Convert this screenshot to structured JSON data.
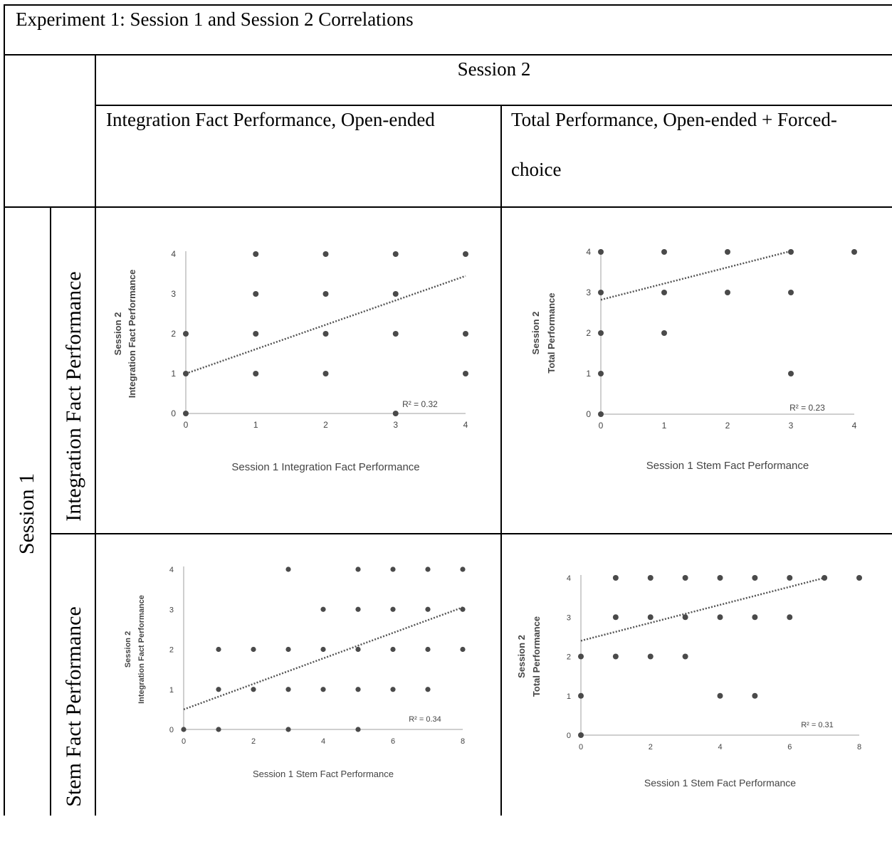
{
  "table": {
    "title": "Experiment 1: Session 1 and Session 2 Correlations",
    "col_group_header": "Session 2",
    "col_headers": [
      "Integration Fact Performance, Open-ended",
      "Total Performance, Open-ended + Forced-",
      "choice"
    ],
    "row_group_header": "Session 1",
    "row_headers": [
      "Integration Fact Performance",
      "Stem Fact Performance"
    ]
  },
  "colors": {
    "marker": "#4a4a4a",
    "trendline": "#555555",
    "axis": "#bfbfbf"
  },
  "chart_data": [
    {
      "type": "scatter",
      "xlabel": "Session 1 Integration Fact Performance",
      "ylabel": [
        "Session 2",
        "Integration Fact Performance"
      ],
      "xlim": [
        0,
        4
      ],
      "ylim": [
        0,
        4
      ],
      "xticks": [
        0,
        1,
        2,
        3,
        4
      ],
      "yticks": [
        0,
        1,
        2,
        3,
        4
      ],
      "r2_label": "R² = 0.32",
      "points": [
        [
          0,
          0
        ],
        [
          0,
          1
        ],
        [
          0,
          2
        ],
        [
          1,
          1
        ],
        [
          1,
          2
        ],
        [
          1,
          3
        ],
        [
          1,
          4
        ],
        [
          2,
          1
        ],
        [
          2,
          2
        ],
        [
          2,
          3
        ],
        [
          2,
          4
        ],
        [
          3,
          0
        ],
        [
          3,
          2
        ],
        [
          3,
          3
        ],
        [
          3,
          4
        ],
        [
          4,
          1
        ],
        [
          4,
          2
        ],
        [
          4,
          4
        ]
      ],
      "trendline": {
        "x1": 0,
        "y1": 1.0,
        "x2": 4,
        "y2": 3.45
      }
    },
    {
      "type": "scatter",
      "xlabel": "Session 1 Stem Fact Performance",
      "ylabel": [
        "Session 2",
        "Total Performance"
      ],
      "xlim": [
        0,
        4
      ],
      "ylim": [
        0,
        4
      ],
      "xticks": [
        0,
        1,
        2,
        3,
        4
      ],
      "yticks": [
        0,
        1,
        2,
        3,
        4
      ],
      "r2_label": "R² = 0.23",
      "points": [
        [
          0,
          0
        ],
        [
          0,
          1
        ],
        [
          0,
          2
        ],
        [
          0,
          3
        ],
        [
          0,
          4
        ],
        [
          1,
          2
        ],
        [
          1,
          3
        ],
        [
          1,
          4
        ],
        [
          2,
          3
        ],
        [
          2,
          4
        ],
        [
          3,
          1
        ],
        [
          3,
          3
        ],
        [
          3,
          4
        ],
        [
          4,
          4
        ]
      ],
      "trendline": {
        "x1": 0,
        "y1": 2.82,
        "x2": 3,
        "y2": 4.02
      }
    },
    {
      "type": "scatter",
      "xlabel": "Session 1 Stem Fact Performance",
      "ylabel": [
        "Session 2",
        "Integration Fact Performance"
      ],
      "xlim": [
        0,
        8
      ],
      "ylim": [
        0,
        4
      ],
      "xticks": [
        0,
        2,
        4,
        6,
        8
      ],
      "yticks": [
        0,
        1,
        2,
        3,
        4
      ],
      "r2_label": "R² = 0.34",
      "points": [
        [
          0,
          0
        ],
        [
          1,
          0
        ],
        [
          1,
          1
        ],
        [
          1,
          2
        ],
        [
          2,
          1
        ],
        [
          2,
          2
        ],
        [
          3,
          0
        ],
        [
          3,
          1
        ],
        [
          3,
          2
        ],
        [
          3,
          4
        ],
        [
          4,
          1
        ],
        [
          4,
          2
        ],
        [
          4,
          3
        ],
        [
          5,
          0
        ],
        [
          5,
          1
        ],
        [
          5,
          2
        ],
        [
          5,
          3
        ],
        [
          5,
          4
        ],
        [
          6,
          1
        ],
        [
          6,
          2
        ],
        [
          6,
          3
        ],
        [
          6,
          4
        ],
        [
          7,
          1
        ],
        [
          7,
          2
        ],
        [
          7,
          3
        ],
        [
          7,
          4
        ],
        [
          8,
          2
        ],
        [
          8,
          3
        ],
        [
          8,
          4
        ]
      ],
      "trendline": {
        "x1": 0,
        "y1": 0.5,
        "x2": 8,
        "y2": 3.05
      }
    },
    {
      "type": "scatter",
      "xlabel": "Session 1 Stem Fact Performance",
      "ylabel": [
        "Session 2",
        "Total Performance"
      ],
      "xlim": [
        0,
        8
      ],
      "ylim": [
        0,
        4
      ],
      "xticks": [
        0,
        2,
        4,
        6,
        8
      ],
      "yticks": [
        0,
        1,
        2,
        3,
        4
      ],
      "r2_label": "R² = 0.31",
      "points": [
        [
          0,
          0
        ],
        [
          0,
          1
        ],
        [
          0,
          2
        ],
        [
          1,
          2
        ],
        [
          1,
          3
        ],
        [
          1,
          4
        ],
        [
          2,
          2
        ],
        [
          2,
          3
        ],
        [
          2,
          4
        ],
        [
          3,
          2
        ],
        [
          3,
          3
        ],
        [
          3,
          4
        ],
        [
          4,
          1
        ],
        [
          4,
          3
        ],
        [
          4,
          4
        ],
        [
          5,
          1
        ],
        [
          5,
          3
        ],
        [
          5,
          4
        ],
        [
          6,
          3
        ],
        [
          6,
          4
        ],
        [
          7,
          4
        ],
        [
          8,
          4
        ]
      ],
      "trendline": {
        "x1": 0,
        "y1": 2.4,
        "x2": 7,
        "y2": 4.0
      }
    }
  ]
}
